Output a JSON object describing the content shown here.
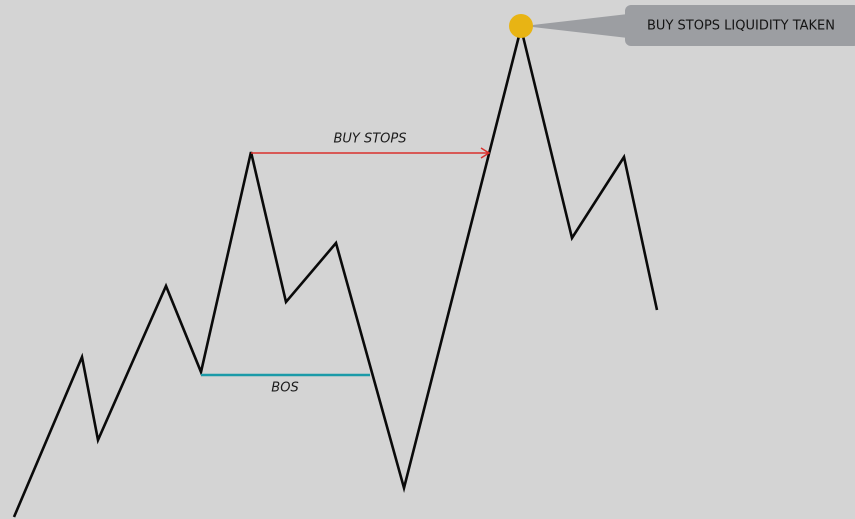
{
  "labels": {
    "buy_stops": "BUY STOPS",
    "bos": "BOS",
    "callout": "BUY STOPS LIQUIDITY TAKEN"
  }
}
